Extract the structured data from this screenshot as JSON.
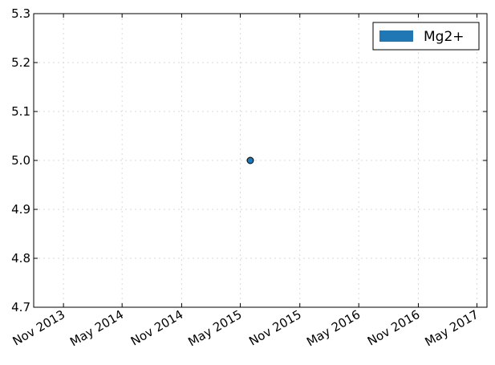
{
  "chart_data": {
    "type": "scatter",
    "title": "",
    "xlabel": "",
    "ylabel": "",
    "x_type": "date",
    "xlim": [
      "2013-08-01",
      "2017-06-01"
    ],
    "ylim": [
      4.7,
      5.3
    ],
    "x_ticks": [
      {
        "value": "2013-11-01",
        "label": "Nov 2013"
      },
      {
        "value": "2014-05-01",
        "label": "May 2014"
      },
      {
        "value": "2014-11-01",
        "label": "Nov 2014"
      },
      {
        "value": "2015-05-01",
        "label": "May 2015"
      },
      {
        "value": "2015-11-01",
        "label": "Nov 2015"
      },
      {
        "value": "2016-05-01",
        "label": "May 2016"
      },
      {
        "value": "2016-11-01",
        "label": "Nov 2016"
      },
      {
        "value": "2017-05-01",
        "label": "May 2017"
      }
    ],
    "y_ticks": [
      "4.7",
      "4.8",
      "4.9",
      "5.0",
      "5.1",
      "5.2",
      "5.3"
    ],
    "grid": true,
    "legend_position": "top-right",
    "series": [
      {
        "name": "Mg2+",
        "color": "#1f77b4",
        "points": [
          {
            "x": "2015-06-01",
            "y": 5.0
          }
        ]
      }
    ]
  }
}
